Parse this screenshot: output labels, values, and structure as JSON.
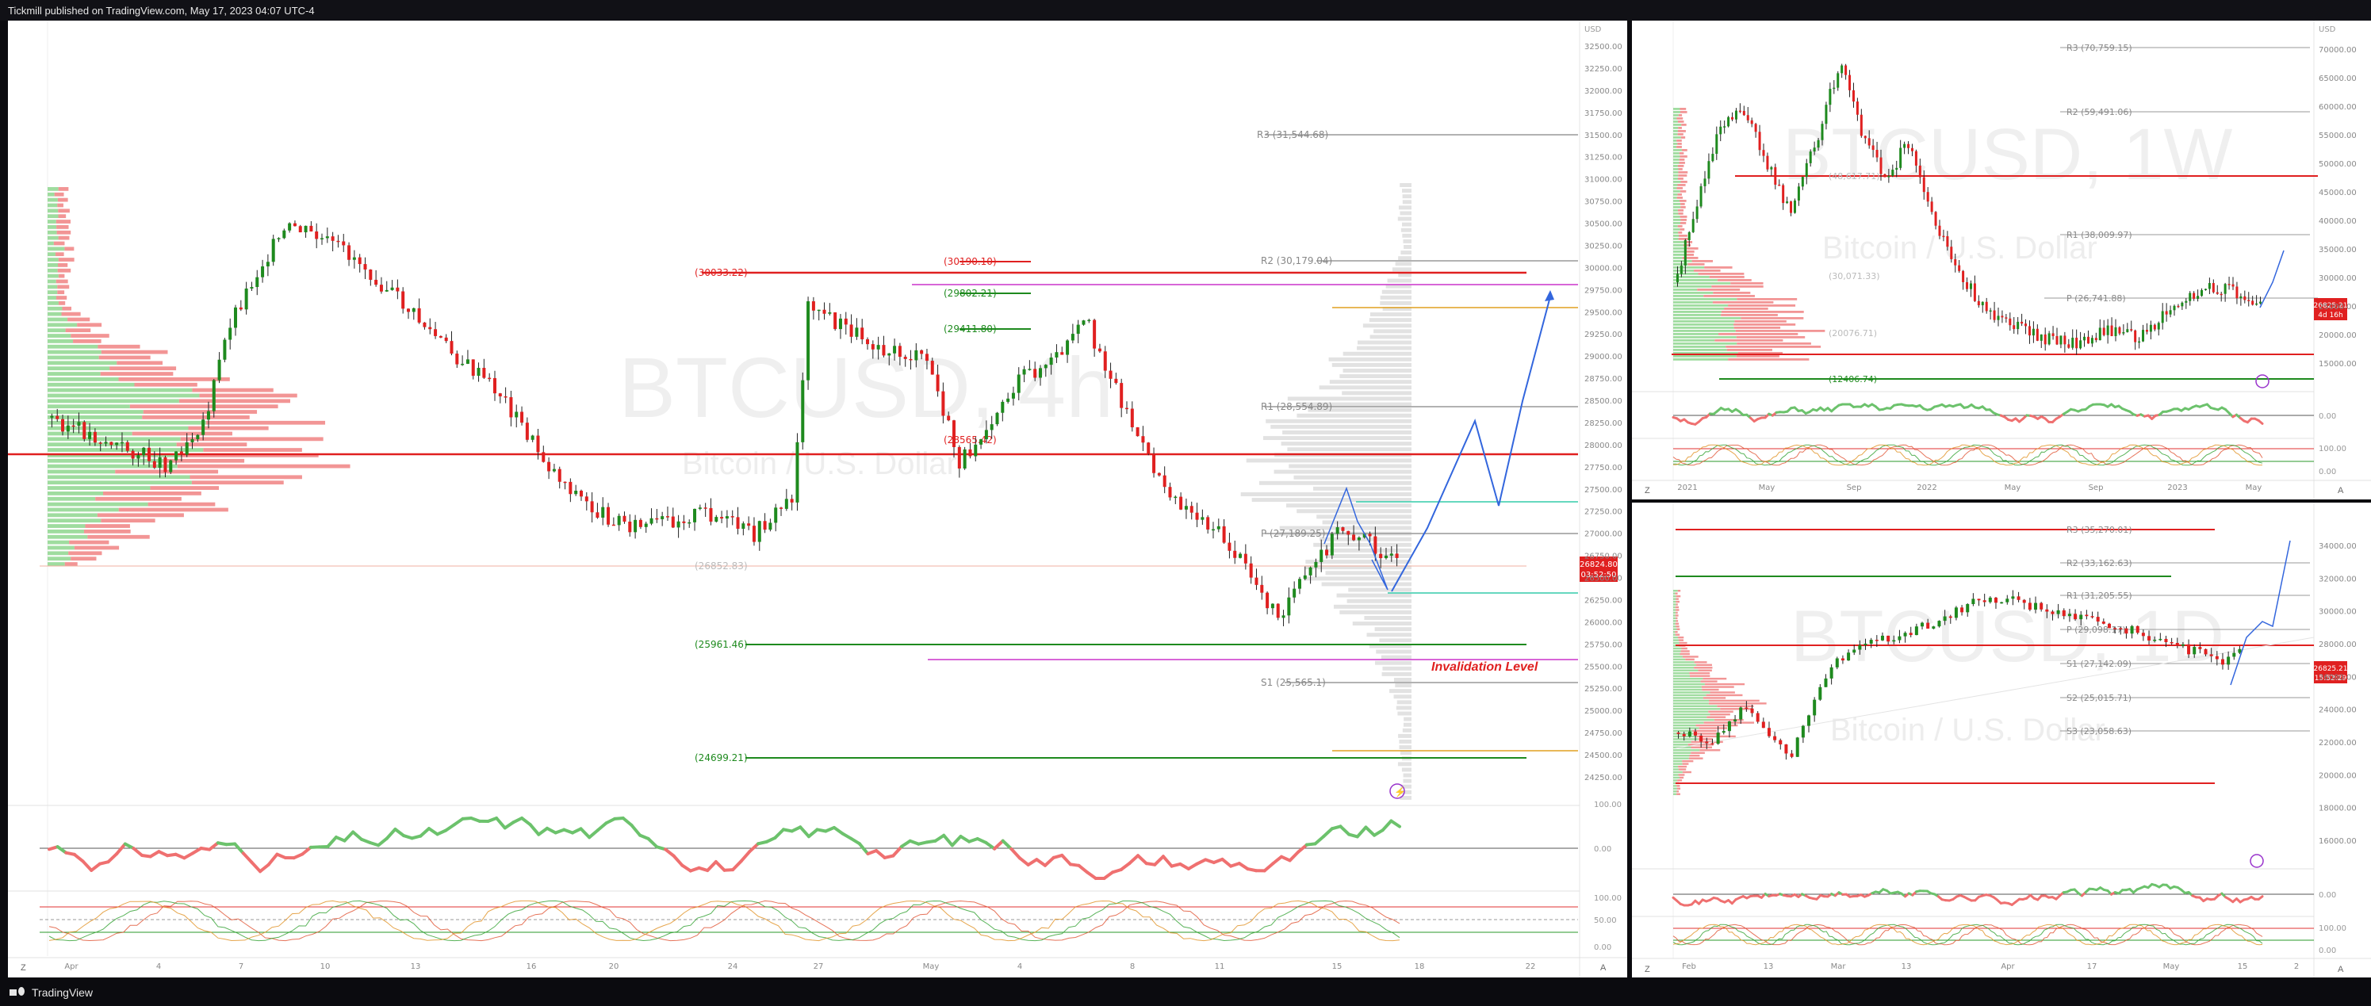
{
  "header": {
    "publish_text": "Tickmill published on TradingView.com, May 17, 2023 04:07 UTC-4"
  },
  "footer": {
    "brand": "TradingView"
  },
  "colors": {
    "bull": "#1e8a1e",
    "bear": "#e02020",
    "blue": "#3366dd",
    "magenta": "#cc33cc",
    "orange": "#e0a020"
  },
  "main_chart": {
    "symbol": "BTCUSD",
    "watermark": "BTCUSD, 4h",
    "subtitle": "Bitcoin / U.S. Dollar",
    "currency": "USD",
    "price_tag": "26824.80",
    "countdown": "03:52:50",
    "annotation": "Invalidation Level",
    "levels": [
      {
        "text": "R3 (31,544.68)"
      },
      {
        "text": "R2 (30,179.04)"
      },
      {
        "text": "R1 (28,554.89)"
      },
      {
        "text": "P (27,189.25)"
      },
      {
        "text": "S1 (25,565.1)"
      },
      {
        "text": "(30033.22)"
      },
      {
        "text": "(30190.10)"
      },
      {
        "text": "(29802.21)"
      },
      {
        "text": "(29411.80)"
      },
      {
        "text": "(28565.42)"
      },
      {
        "text": "(26852.83)"
      },
      {
        "text": "(25961.46)"
      },
      {
        "text": "(24699.21)"
      }
    ],
    "x_ticks": [
      "Apr",
      "4",
      "7",
      "10",
      "13",
      "16",
      "20",
      "24",
      "27",
      "May",
      "4",
      "8",
      "11",
      "15",
      "18",
      "22"
    ],
    "y_ticks": [
      "32500.00",
      "32250.00",
      "32000.00",
      "31750.00",
      "31500.00",
      "31250.00",
      "31000.00",
      "30750.00",
      "30500.00",
      "30250.00",
      "30000.00",
      "29750.00",
      "29500.00",
      "29250.00",
      "29000.00",
      "28750.00",
      "28500.00",
      "28250.00",
      "28000.00",
      "27750.00",
      "27500.00",
      "27250.00",
      "27000.00",
      "26750.00",
      "26500.00",
      "26250.00",
      "26000.00",
      "25750.00",
      "25500.00",
      "25250.00",
      "25000.00",
      "24750.00",
      "24500.00",
      "24250.00"
    ],
    "osc1_ticks": [
      "100.00",
      "0.00"
    ],
    "osc2_ticks": [
      "100.00",
      "50.00",
      "0.00"
    ]
  },
  "weekly_chart": {
    "watermark": "BTCUSD, 1W",
    "subtitle": "Bitcoin / U.S. Dollar",
    "currency": "USD",
    "price_tag": "26825.21",
    "countdown": "4d 16h",
    "levels": [
      {
        "text": "R3 (70,759.15)"
      },
      {
        "text": "R2 (59,491.06)"
      },
      {
        "text": "R1 (38,009.97)"
      },
      {
        "text": "P (26,741.88)"
      },
      {
        "text": "(20076.71)"
      },
      {
        "text": "(12406.74)"
      },
      {
        "text": "(48,617.71)"
      },
      {
        "text": "(30,071.33)"
      }
    ],
    "x_ticks": [
      "2021",
      "May",
      "Sep",
      "2022",
      "May",
      "Sep",
      "2023",
      "May"
    ],
    "y_ticks": [
      "70000.00",
      "65000.00",
      "60000.00",
      "55000.00",
      "50000.00",
      "45000.00",
      "40000.00",
      "35000.00",
      "30000.00",
      "25000.00",
      "20000.00",
      "15000.00"
    ],
    "osc1_ticks": [
      "0.00"
    ],
    "osc2_ticks": [
      "100.00",
      "0.00"
    ]
  },
  "daily_chart": {
    "watermark": "BTCUSD, 1D",
    "subtitle": "Bitcoin / U.S. Dollar",
    "currency": "USD",
    "price_tag": "26825.21",
    "countdown": "15:52:29",
    "levels": [
      {
        "text": "R3 (35,270.01)"
      },
      {
        "text": "R2 (33,162.63)"
      },
      {
        "text": "R1 (31,205.55)"
      },
      {
        "text": "P (29,098.17)"
      },
      {
        "text": "S1 (27,142.09)"
      },
      {
        "text": "S2 (25,015.71)"
      },
      {
        "text": "S3 (23,058.63)"
      }
    ],
    "x_ticks": [
      "Feb",
      "13",
      "Mar",
      "13",
      "Apr",
      "17",
      "May",
      "15",
      "2"
    ],
    "y_ticks": [
      "34000.00",
      "32000.00",
      "30000.00",
      "28000.00",
      "26000.00",
      "24000.00",
      "22000.00",
      "20000.00",
      "18000.00",
      "16000.00"
    ],
    "osc1_ticks": [
      "0.00"
    ],
    "osc2_ticks": [
      "100.00",
      "0.00"
    ]
  }
}
